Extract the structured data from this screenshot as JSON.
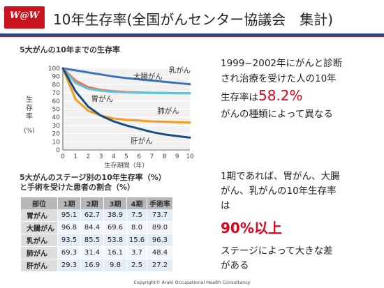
{
  "logo": "W@W",
  "title": "10年生存率(全国がんセンター協議会　集計)",
  "chart": {
    "title": "5大がんの10年までの生存率",
    "ylabel_chars": [
      "生",
      "存",
      "率"
    ],
    "yunit": "(%)",
    "xlabel": "生存期間（年）"
  },
  "chart_data": {
    "type": "line",
    "title": "5大がんの10年までの生存率",
    "xlabel": "生存期間（年）",
    "ylabel": "生存率(%)",
    "x": [
      0,
      1,
      2,
      3,
      4,
      5,
      6,
      7,
      8,
      9,
      10
    ],
    "xlim": [
      0,
      10
    ],
    "ylim": [
      0,
      100
    ],
    "yticks": [
      0,
      10,
      20,
      30,
      40,
      50,
      60,
      70,
      80,
      90,
      100
    ],
    "grid": true,
    "series": [
      {
        "name": "乳がん",
        "color": "#3b73b9",
        "values": [
          100,
          97.5,
          95,
          92.5,
          90,
          88,
          86.5,
          85,
          83.5,
          82,
          80.5
        ]
      },
      {
        "name": "大腸がん",
        "color": "#e8735a",
        "values": [
          100,
          85,
          77,
          73.5,
          72,
          71,
          70.5,
          70,
          69.8,
          69.6,
          69.5
        ]
      },
      {
        "name": "胃がん",
        "color": "#5cc6d4",
        "values": [
          100,
          82,
          75,
          72.5,
          71,
          70.5,
          70,
          69.8,
          69.6,
          69.5,
          69.4
        ]
      },
      {
        "name": "肺がん",
        "color": "#f29b1e",
        "values": [
          100,
          62,
          48,
          42,
          38.5,
          37,
          36,
          35,
          34.5,
          34,
          33.5
        ]
      },
      {
        "name": "肝がん",
        "color": "#1a4d80",
        "values": [
          100,
          72,
          53,
          42,
          35,
          30,
          26,
          22,
          19,
          17,
          15
        ]
      }
    ]
  },
  "text1": {
    "line1": "1999~2002年にがんと診断",
    "line2": "され治療を受けた人の10年",
    "line3_prefix": "生存率は",
    "line3_value": "58.2%",
    "line4": "がんの種類によって異なる"
  },
  "table": {
    "title_line1": "5大がんのステージ別の10年生存率（%）",
    "title_line2": "と手術を受けた患者の割合（%）",
    "headers": [
      "部位",
      "1期",
      "2期",
      "3期",
      "4期",
      "手術率"
    ],
    "rows": [
      [
        "胃がん",
        "95.1",
        "62.7",
        "38.9",
        "7.5",
        "73.7"
      ],
      [
        "大腸がん",
        "96.8",
        "84.4",
        "69.6",
        "8.0",
        "89.0"
      ],
      [
        "乳がん",
        "93.5",
        "85.5",
        "53.8",
        "15.6",
        "96.3"
      ],
      [
        "肺がん",
        "69.3",
        "31.4",
        "16.1",
        "3.7",
        "48.4"
      ],
      [
        "肝がん",
        "29.3",
        "16.9",
        "9.8",
        "2.5",
        "27.2"
      ]
    ]
  },
  "text2": {
    "line1": "1期であれば、胃がん、大腸",
    "line2": "がん、乳がんの10年生存率",
    "line3": "は",
    "line4": "90%以上",
    "line5": "ステージによって大きな差",
    "line6": "がある"
  },
  "footer": "Copyright©  Araki Occupational Health Consultancy"
}
